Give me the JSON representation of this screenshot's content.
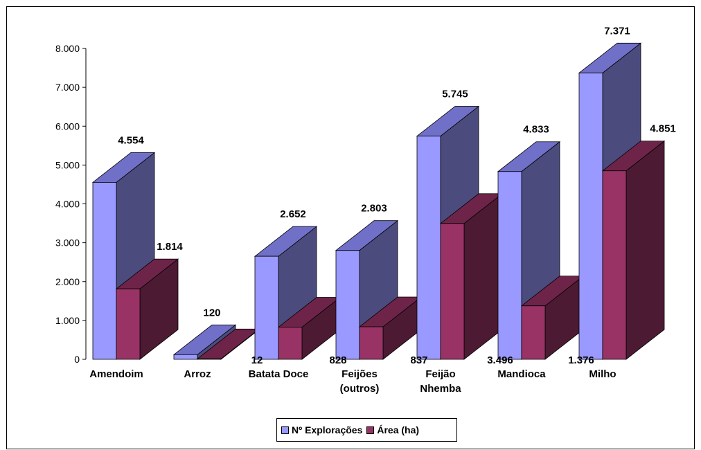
{
  "chart_data": {
    "type": "bar",
    "categories": [
      "Amendoim",
      "Arroz",
      "Batata Doce",
      "Feijões (outros)",
      "Feijão Nhemba",
      "Mandioca",
      "Milho"
    ],
    "series": [
      {
        "name": "Nº Explorações",
        "values": [
          4554,
          120,
          2652,
          2803,
          5745,
          4833,
          7371
        ],
        "labels": [
          "4.554",
          "120",
          "2.652",
          "2.803",
          "5.745",
          "4.833",
          "7.371"
        ],
        "color_front": "#9999ff",
        "color_side": "#4b4b7e",
        "color_top": "#7070c8"
      },
      {
        "name": "Área (ha)",
        "values": [
          1814,
          12,
          828,
          837,
          3496,
          1376,
          4851
        ],
        "labels": [
          "1.814",
          "12",
          "828",
          "837",
          "3.496",
          "1.376",
          "4.851"
        ],
        "color_front": "#993366",
        "color_side": "#4d1a33",
        "color_top": "#6e2448"
      }
    ],
    "ylim": [
      0,
      8000
    ],
    "yticks": [
      0,
      1000,
      2000,
      3000,
      4000,
      5000,
      6000,
      7000,
      8000
    ],
    "ytick_labels": [
      "0",
      "1.000",
      "2.000",
      "3.000",
      "4.000",
      "5.000",
      "6.000",
      "7.000",
      "8.000"
    ],
    "grid": false,
    "legend": "bottom",
    "title": "",
    "xlabel": "",
    "ylabel": ""
  },
  "legend": {
    "items": [
      {
        "label": "Nº Explorações",
        "color": "#9999ff"
      },
      {
        "label": "Área (ha)",
        "color": "#993366"
      }
    ]
  }
}
